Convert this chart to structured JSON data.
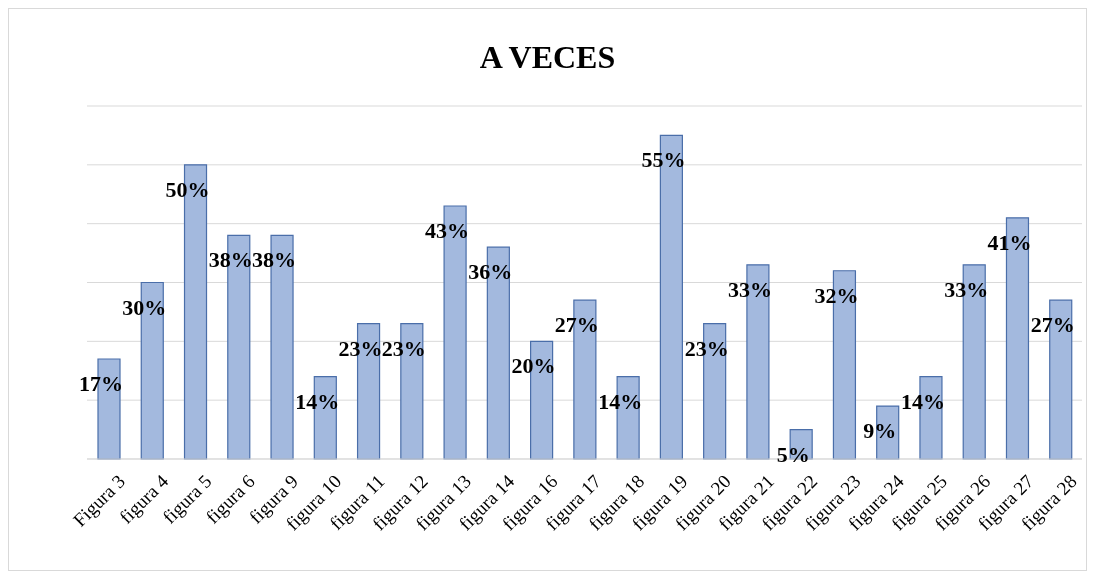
{
  "chart_data": {
    "type": "bar",
    "title": "A VECES",
    "categories": [
      "Figura 3",
      "figura 4",
      "figura 5",
      "figura 6",
      "figura 9",
      "figura 10",
      "figura 11",
      "figura 12",
      "figura 13",
      "figura 14",
      "figura 16",
      "figura 17",
      "figura 18",
      "figura 19",
      "figura 20",
      "figura 21",
      "figura 22",
      "figura 23",
      "figura 24",
      "figura 25",
      "figura 26",
      "figura 27",
      "figura 28"
    ],
    "values": [
      17,
      30,
      50,
      38,
      38,
      14,
      23,
      23,
      43,
      36,
      20,
      27,
      14,
      55,
      23,
      33,
      5,
      32,
      9,
      14,
      33,
      41,
      27
    ],
    "value_labels": [
      "17%",
      "30%",
      "50%",
      "38%",
      "38%",
      "14%",
      "23%",
      "23%",
      "43%",
      "36%",
      "20%",
      "27%",
      "14%",
      "55%",
      "23%",
      "33%",
      "5%",
      "32%",
      "9%",
      "14%",
      "33%",
      "41%",
      "27%"
    ],
    "color": "#a3b9de",
    "grid": "y",
    "tick_labels": "x"
  }
}
